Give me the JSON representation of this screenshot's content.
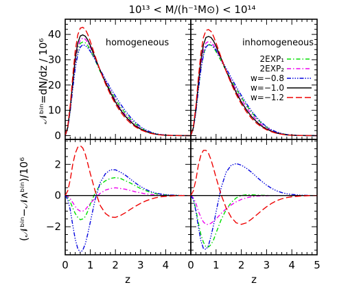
{
  "figure": {
    "title": "10¹³ < M/(h⁻¹M⊙) < 10¹⁴",
    "xlabel": "z",
    "ylabel_top": "𝒩ᵇⁱⁿ=dN/dz / 10⁶",
    "ylabel_bottom": "(𝒩ᵇⁱⁿ−𝒩ᴧᵇⁱⁿ)/10⁶",
    "panel_labels": [
      "homogeneous",
      "inhomogeneous"
    ]
  },
  "chart_data": {
    "type": "line",
    "xlim": [
      0,
      5
    ],
    "ylim_top": [
      -1.5,
      46
    ],
    "ylim_bottom": [
      -3.8,
      3.6
    ],
    "x_ticks": [
      0,
      1,
      2,
      3,
      4,
      5
    ],
    "x_tick_labels_left": [
      "0",
      "1",
      "2",
      "3",
      "4"
    ],
    "x_tick_labels_right": [
      "0",
      "1",
      "2",
      "3",
      "4",
      "5"
    ],
    "y_ticks_top": [
      0,
      10,
      20,
      30,
      40
    ],
    "y_ticks_bottom": [
      -2,
      0,
      2
    ],
    "legend": {
      "placement": "right-middle of top-right panel",
      "entries": [
        {
          "label": "2EXP₁",
          "color": "#00dd00",
          "dash": "6,3,1.5,3"
        },
        {
          "label": "2EXP₂",
          "color": "#ee00ee",
          "dash": "6,3,1.5,3"
        },
        {
          "label": "w=−0.8",
          "color": "#0000dd",
          "dash": "6,2,1.5,2,1.5,2,1.5,2"
        },
        {
          "label": "w=−1.0",
          "color": "#000000",
          "dash": ""
        },
        {
          "label": "w=−1.2",
          "color": "#ee0000",
          "dash": "9,4"
        }
      ]
    },
    "x": [
      0,
      0.1,
      0.2,
      0.3,
      0.4,
      0.5,
      0.6,
      0.7,
      0.8,
      0.9,
      1.0,
      1.2,
      1.4,
      1.6,
      1.8,
      2.0,
      2.2,
      2.4,
      2.6,
      2.8,
      3.0,
      3.2,
      3.4,
      3.6,
      3.8,
      4.0,
      4.2,
      4.4,
      4.6,
      4.8,
      5.0
    ],
    "panels": [
      {
        "name": "homogeneous",
        "top_series": [
          {
            "name": "2EXP₁",
            "values": [
              0,
              3,
              10,
              19.6,
              28,
              33.8,
              36.5,
              37,
              36.7,
              35.6,
              33.8,
              29.6,
              25.2,
              21.4,
              17.8,
              14.5,
              11.4,
              8.8,
              6.4,
              4.6,
              3.1,
              2,
              1.2,
              0.7,
              0.4,
              0.2,
              0.1,
              0.06,
              0.03,
              0.02,
              0.01
            ]
          },
          {
            "name": "2EXP₂",
            "values": [
              0,
              3.2,
              10.6,
              20.3,
              29,
              35,
              37.8,
              38.5,
              38.1,
              36.8,
              34.9,
              30.4,
              25.7,
              21.5,
              17.5,
              13.9,
              10.7,
              8.1,
              5.9,
              4.1,
              2.8,
              1.8,
              1.1,
              0.6,
              0.3,
              0.2,
              0.1,
              0.05,
              0.03,
              0.01,
              0
            ]
          },
          {
            "name": "w=−0.8",
            "values": [
              0,
              3,
              9.6,
              18.5,
              26.5,
              32,
              35,
              35.9,
              35.6,
              34.7,
              33.3,
              29.8,
              25.9,
              22.3,
              18.8,
              15.6,
              12.5,
              9.7,
              7.2,
              5.2,
              3.5,
              2.3,
              1.4,
              0.8,
              0.4,
              0.2,
              0.1,
              0.06,
              0.03,
              0.02,
              0.01
            ]
          },
          {
            "name": "w=−1.0",
            "values": [
              0,
              3.3,
              11,
              21.3,
              30.5,
              36.6,
              39.4,
              39.8,
              39.3,
              37.8,
              35.6,
              30.6,
              25.6,
              21.1,
              17,
              13.3,
              10.2,
              7.6,
              5.5,
              3.8,
              2.6,
              1.7,
              1,
              0.6,
              0.3,
              0.15,
              0.08,
              0.04,
              0.02,
              0.01,
              0
            ]
          },
          {
            "name": "w=−1.2",
            "values": [
              0,
              3.6,
              12,
              23.5,
              33.5,
              39.8,
              42.5,
              42.8,
              42,
              40,
              37.2,
              31.2,
              25.5,
              20.5,
              16.2,
              12.5,
              9.4,
              6.9,
              4.9,
              3.4,
              2.3,
              1.5,
              0.9,
              0.5,
              0.3,
              0.15,
              0.08,
              0.04,
              0.02,
              0.01,
              0
            ]
          }
        ],
        "bottom_series": [
          {
            "name": "2EXP₁",
            "values": [
              0,
              -0.1,
              -0.4,
              -0.8,
              -1.15,
              -1.4,
              -1.55,
              -1.5,
              -1.35,
              -1.0,
              -0.55,
              0.2,
              0.7,
              0.95,
              1.1,
              1.15,
              1.1,
              0.95,
              0.8,
              0.62,
              0.45,
              0.32,
              0.2,
              0.12,
              0.07,
              0.04,
              0.02,
              0.01,
              0,
              0,
              0
            ]
          },
          {
            "name": "2EXP₂",
            "values": [
              0,
              -0.05,
              -0.2,
              -0.45,
              -0.7,
              -0.9,
              -1.0,
              -1.0,
              -0.9,
              -0.7,
              -0.5,
              -0.15,
              0.15,
              0.35,
              0.45,
              0.5,
              0.45,
              0.4,
              0.32,
              0.24,
              0.17,
              0.11,
              0.07,
              0.04,
              0.02,
              0.01,
              0,
              0,
              0,
              0,
              0
            ]
          },
          {
            "name": "w=−0.8",
            "values": [
              0,
              -0.25,
              -0.9,
              -1.9,
              -2.8,
              -3.4,
              -3.65,
              -3.5,
              -3.1,
              -2.45,
              -1.7,
              -0.2,
              0.85,
              1.4,
              1.65,
              1.65,
              1.5,
              1.3,
              1.05,
              0.8,
              0.58,
              0.4,
              0.26,
              0.16,
              0.1,
              0.06,
              0.03,
              0.02,
              0.01,
              0,
              0
            ]
          },
          {
            "name": "w=−1.0",
            "values": [
              0,
              0,
              0,
              0,
              0,
              0,
              0,
              0,
              0,
              0,
              0,
              0,
              0,
              0,
              0,
              0,
              0,
              0,
              0,
              0,
              0,
              0,
              0,
              0,
              0,
              0,
              0,
              0,
              0,
              0,
              0
            ]
          },
          {
            "name": "w=−1.2",
            "values": [
              0,
              0.3,
              1.0,
              2.0,
              2.7,
              3.1,
              3.2,
              3.05,
              2.65,
              2.05,
              1.4,
              0.25,
              -0.65,
              -1.15,
              -1.38,
              -1.4,
              -1.28,
              -1.1,
              -0.88,
              -0.68,
              -0.5,
              -0.35,
              -0.23,
              -0.14,
              -0.08,
              -0.05,
              -0.03,
              -0.01,
              0,
              0,
              0
            ]
          }
        ]
      },
      {
        "name": "inhomogeneous",
        "top_series": [
          {
            "name": "2EXP₁",
            "values": [
              0,
              2.8,
              9.4,
              18.5,
              26.6,
              32.3,
              35.2,
              35.9,
              35.7,
              34.8,
              33.2,
              29.5,
              25.6,
              21.9,
              18.4,
              15.1,
              12,
              9.3,
              6.9,
              4.9,
              3.3,
              2.2,
              1.3,
              0.8,
              0.4,
              0.2,
              0.1,
              0.06,
              0.03,
              0.02,
              0.01
            ]
          },
          {
            "name": "2EXP₂",
            "values": [
              0,
              3,
              10.1,
              19.6,
              28,
              33.8,
              36.6,
              37.2,
              36.9,
              35.8,
              34.1,
              30,
              25.7,
              21.7,
              17.9,
              14.4,
              11.2,
              8.5,
              6.2,
              4.4,
              3,
              1.9,
              1.2,
              0.7,
              0.4,
              0.2,
              0.1,
              0.05,
              0.03,
              0.01,
              0
            ]
          },
          {
            "name": "w=−0.8",
            "values": [
              0,
              2.9,
              9.3,
              18,
              26,
              31.8,
              35,
              36,
              35.9,
              35.1,
              33.8,
              30.4,
              26.6,
              22.9,
              19.3,
              15.9,
              12.7,
              9.8,
              7.3,
              5.2,
              3.5,
              2.3,
              1.4,
              0.8,
              0.4,
              0.2,
              0.1,
              0.06,
              0.03,
              0.02,
              0.01
            ]
          },
          {
            "name": "w=−1.0",
            "values": [
              0,
              3.2,
              10.7,
              20.7,
              29.8,
              35.9,
              38.8,
              39.2,
              38.8,
              37.4,
              35.3,
              30.5,
              25.6,
              21.1,
              17,
              13.3,
              10.2,
              7.6,
              5.5,
              3.8,
              2.6,
              1.7,
              1,
              0.6,
              0.3,
              0.15,
              0.08,
              0.04,
              0.02,
              0.01,
              0
            ]
          },
          {
            "name": "w=−1.2",
            "values": [
              0,
              3.5,
              11.7,
              22.8,
              32.6,
              38.8,
              41.6,
              41.9,
              41.2,
              39.3,
              36.6,
              30.9,
              25.4,
              20.5,
              16.2,
              12.5,
              9.4,
              6.9,
              4.9,
              3.4,
              2.3,
              1.5,
              0.9,
              0.5,
              0.3,
              0.15,
              0.08,
              0.04,
              0.02,
              0.01,
              0
            ]
          }
        ],
        "bottom_series": [
          {
            "name": "2EXP₁",
            "values": [
              0,
              -0.25,
              -0.9,
              -1.75,
              -2.5,
              -3.0,
              -3.3,
              -3.3,
              -3.15,
              -2.85,
              -2.4,
              -1.55,
              -0.9,
              -0.45,
              -0.15,
              0,
              0.05,
              0.05,
              0.03,
              0.02,
              0.01,
              0,
              0,
              0,
              0,
              0,
              0,
              0,
              0,
              0,
              0
            ]
          },
          {
            "name": "2EXP₂",
            "values": [
              0,
              -0.15,
              -0.5,
              -1.0,
              -1.4,
              -1.7,
              -1.85,
              -1.85,
              -1.78,
              -1.65,
              -1.5,
              -1.15,
              -0.85,
              -0.6,
              -0.4,
              -0.25,
              -0.15,
              -0.08,
              -0.04,
              -0.02,
              -0.01,
              0,
              0,
              0,
              0,
              0,
              0,
              0,
              0,
              0,
              0
            ]
          },
          {
            "name": "w=−0.8",
            "values": [
              0,
              -0.25,
              -1.0,
              -2.0,
              -2.9,
              -3.4,
              -3.45,
              -3.2,
              -2.6,
              -1.9,
              -1.05,
              0.5,
              1.5,
              1.95,
              2.05,
              1.95,
              1.75,
              1.5,
              1.2,
              0.92,
              0.67,
              0.46,
              0.3,
              0.19,
              0.11,
              0.07,
              0.04,
              0.02,
              0.01,
              0,
              0
            ]
          },
          {
            "name": "w=−1.0",
            "values": [
              0,
              0,
              0,
              0,
              0,
              0,
              0,
              0,
              0,
              0,
              0,
              0,
              0,
              0,
              0,
              0,
              0,
              0,
              0,
              0,
              0,
              0,
              0,
              0,
              0,
              0,
              0,
              0,
              0,
              0,
              0
            ]
          },
          {
            "name": "w=−1.2",
            "values": [
              0,
              0.3,
              1.0,
              1.95,
              2.6,
              2.9,
              2.9,
              2.7,
              2.3,
              1.75,
              1.15,
              0.05,
              -0.8,
              -1.4,
              -1.75,
              -1.85,
              -1.75,
              -1.52,
              -1.25,
              -0.97,
              -0.72,
              -0.5,
              -0.33,
              -0.21,
              -0.13,
              -0.08,
              -0.05,
              -0.03,
              -0.01,
              0,
              0
            ]
          }
        ]
      }
    ]
  }
}
